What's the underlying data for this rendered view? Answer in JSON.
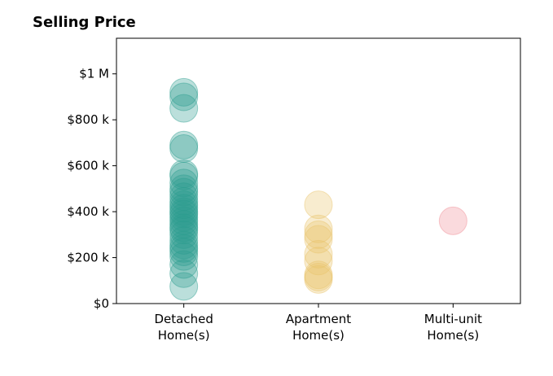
{
  "chart_data": {
    "type": "scatter",
    "title": "Selling Price",
    "xlabel": "",
    "ylabel": "",
    "categories": [
      {
        "id": "detached",
        "line1": "Detached",
        "line2": "Home(s)"
      },
      {
        "id": "apartment",
        "line1": "Apartment",
        "line2": "Home(s)"
      },
      {
        "id": "multiunit",
        "line1": "Multi-unit",
        "line2": "Home(s)"
      }
    ],
    "y_ticks": [
      {
        "value": 0,
        "label": "$0"
      },
      {
        "value": 200000,
        "label": "$200 k"
      },
      {
        "value": 400000,
        "label": "$400 k"
      },
      {
        "value": 600000,
        "label": "$600 k"
      },
      {
        "value": 800000,
        "label": "$800 k"
      },
      {
        "value": 1000000,
        "label": "$1 M"
      }
    ],
    "ylim": [
      0,
      1155000
    ],
    "xlim": [
      -0.5,
      2.5
    ],
    "grid": false,
    "series": [
      {
        "category": "detached",
        "color": "#2a9d8f",
        "values": [
          920000,
          900000,
          850000,
          690000,
          675000,
          565000,
          555000,
          525000,
          500000,
          485000,
          465000,
          445000,
          430000,
          415000,
          400000,
          390000,
          375000,
          360000,
          345000,
          330000,
          320000,
          300000,
          275000,
          255000,
          240000,
          225000,
          205000,
          170000,
          130000,
          75000
        ]
      },
      {
        "category": "apartment",
        "color": "#e9c46a",
        "values": [
          430000,
          325000,
          300000,
          280000,
          215000,
          185000,
          125000,
          115000,
          105000
        ]
      },
      {
        "category": "multiunit",
        "color": "#f08c94",
        "values": [
          360000
        ]
      }
    ]
  }
}
